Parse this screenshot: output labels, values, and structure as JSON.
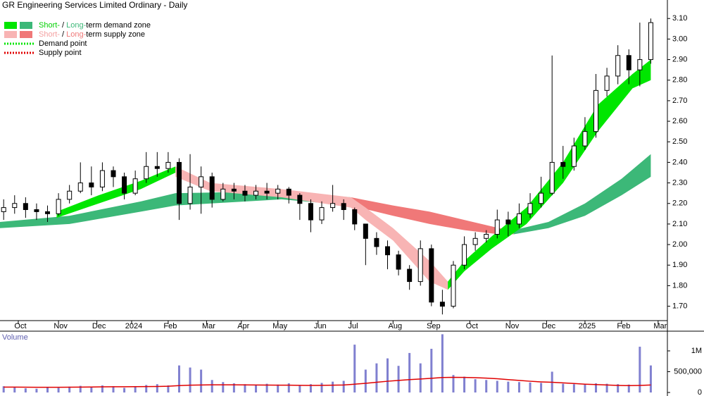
{
  "chart_data": {
    "type": "candlestick",
    "title": "GR Engineering Services Limited Ordinary - Daily",
    "xlim": [
      0,
      362
    ],
    "xticks": [
      {
        "value": 10,
        "label": "Oct"
      },
      {
        "value": 32,
        "label": "Nov"
      },
      {
        "value": 53,
        "label": "Dec"
      },
      {
        "value": 72,
        "label": "2024"
      },
      {
        "value": 92,
        "label": "Feb"
      },
      {
        "value": 113,
        "label": "Mar"
      },
      {
        "value": 132,
        "label": "Apr"
      },
      {
        "value": 152,
        "label": "May"
      },
      {
        "value": 174,
        "label": "Jun"
      },
      {
        "value": 192,
        "label": "Jul"
      },
      {
        "value": 215,
        "label": "Aug"
      },
      {
        "value": 236,
        "label": "Sep"
      },
      {
        "value": 257,
        "label": "Oct"
      },
      {
        "value": 279,
        "label": "Nov"
      },
      {
        "value": 299,
        "label": "Dec"
      },
      {
        "value": 320,
        "label": "2025"
      },
      {
        "value": 340,
        "label": "Feb"
      },
      {
        "value": 360,
        "label": "Mar"
      }
    ],
    "ylim": [
      1.63,
      3.19
    ],
    "yticks": [
      {
        "value": 1.7,
        "label": "1.70"
      },
      {
        "value": 1.8,
        "label": "1.80"
      },
      {
        "value": 1.9,
        "label": "1.90"
      },
      {
        "value": 2.0,
        "label": "2.00"
      },
      {
        "value": 2.1,
        "label": "2.10"
      },
      {
        "value": 2.2,
        "label": "2.20"
      },
      {
        "value": 2.3,
        "label": "2.30"
      },
      {
        "value": 2.4,
        "label": "2.40"
      },
      {
        "value": 2.5,
        "label": "2.50"
      },
      {
        "value": 2.6,
        "label": "2.60"
      },
      {
        "value": 2.7,
        "label": "2.70"
      },
      {
        "value": 2.8,
        "label": "2.80"
      },
      {
        "value": 2.9,
        "label": "2.90"
      },
      {
        "value": 3.0,
        "label": "3.00"
      },
      {
        "value": 3.1,
        "label": "3.10"
      }
    ],
    "x": [
      2,
      8,
      14,
      20,
      26,
      32,
      38,
      44,
      50,
      56,
      62,
      68,
      74,
      80,
      86,
      92,
      98,
      104,
      110,
      116,
      122,
      128,
      134,
      140,
      146,
      152,
      158,
      164,
      170,
      176,
      182,
      188,
      194,
      200,
      206,
      212,
      218,
      224,
      230,
      236,
      242,
      248,
      254,
      260,
      266,
      272,
      278,
      284,
      290,
      296,
      302,
      308,
      314,
      320,
      326,
      332,
      338,
      344,
      350,
      356
    ],
    "open": [
      2.16,
      2.18,
      2.2,
      2.17,
      2.16,
      2.15,
      2.22,
      2.26,
      2.3,
      2.28,
      2.36,
      2.33,
      2.25,
      2.32,
      2.38,
      2.37,
      2.4,
      2.2,
      2.28,
      2.33,
      2.22,
      2.27,
      2.26,
      2.24,
      2.26,
      2.25,
      2.27,
      2.24,
      2.2,
      2.12,
      2.18,
      2.2,
      2.17,
      2.1,
      2.03,
      1.99,
      1.95,
      1.88,
      1.82,
      1.98,
      1.72,
      1.7,
      1.9,
      2.0,
      2.03,
      2.05,
      2.12,
      2.1,
      2.15,
      2.2,
      2.25,
      2.4,
      2.38,
      2.48,
      2.55,
      2.75,
      2.82,
      2.92,
      2.85,
      2.9
    ],
    "high": [
      2.22,
      2.24,
      2.23,
      2.2,
      2.19,
      2.25,
      2.29,
      2.4,
      2.38,
      2.4,
      2.38,
      2.35,
      2.36,
      2.45,
      2.45,
      2.45,
      2.42,
      2.44,
      2.38,
      2.35,
      2.3,
      2.3,
      2.29,
      2.29,
      2.3,
      2.29,
      2.28,
      2.25,
      2.22,
      2.21,
      2.29,
      2.22,
      2.18,
      2.1,
      2.06,
      2.02,
      1.97,
      1.9,
      2.02,
      2.0,
      1.78,
      1.92,
      2.04,
      2.06,
      2.07,
      2.17,
      2.16,
      2.2,
      2.25,
      2.33,
      2.92,
      2.48,
      2.52,
      2.62,
      2.83,
      2.86,
      2.97,
      2.95,
      3.08,
      3.1
    ],
    "low": [
      2.12,
      2.15,
      2.13,
      2.12,
      2.11,
      2.14,
      2.2,
      2.25,
      2.24,
      2.26,
      2.28,
      2.22,
      2.24,
      2.3,
      2.33,
      2.35,
      2.12,
      2.17,
      2.15,
      2.18,
      2.21,
      2.22,
      2.21,
      2.22,
      2.22,
      2.22,
      2.2,
      2.12,
      2.06,
      2.1,
      2.16,
      2.12,
      2.07,
      1.9,
      1.95,
      1.88,
      1.85,
      1.78,
      1.8,
      1.7,
      1.66,
      1.69,
      1.88,
      1.97,
      2.01,
      2.03,
      2.04,
      2.08,
      2.13,
      2.18,
      2.24,
      2.32,
      2.36,
      2.46,
      2.52,
      2.72,
      2.78,
      2.78,
      2.77,
      2.88
    ],
    "close": [
      2.18,
      2.2,
      2.17,
      2.16,
      2.15,
      2.22,
      2.26,
      2.3,
      2.28,
      2.36,
      2.33,
      2.25,
      2.32,
      2.38,
      2.37,
      2.4,
      2.2,
      2.28,
      2.33,
      2.22,
      2.27,
      2.26,
      2.24,
      2.26,
      2.25,
      2.27,
      2.24,
      2.2,
      2.12,
      2.18,
      2.2,
      2.17,
      2.1,
      2.03,
      1.99,
      1.95,
      1.88,
      1.82,
      1.98,
      1.72,
      1.7,
      1.9,
      2.0,
      2.03,
      2.05,
      2.12,
      2.1,
      2.15,
      2.2,
      2.25,
      2.4,
      2.38,
      2.48,
      2.55,
      2.75,
      2.82,
      2.92,
      2.85,
      2.9,
      3.08
    ],
    "zones": [
      {
        "color": "#3cb878",
        "x": [
          0,
          38,
          77,
          96,
          154,
          192
        ],
        "lower": [
          2.08,
          2.1,
          2.16,
          2.19,
          2.22,
          2.19
        ],
        "upper": [
          2.11,
          2.14,
          2.21,
          2.25,
          2.26,
          2.23
        ]
      },
      {
        "color": "#f07878",
        "x": [
          192,
          215,
          235,
          254,
          273,
          281
        ],
        "lower": [
          2.19,
          2.14,
          2.1,
          2.07,
          2.05,
          2.05
        ],
        "upper": [
          2.23,
          2.19,
          2.16,
          2.12,
          2.08,
          2.07
        ]
      },
      {
        "color": "#3cb878",
        "x": [
          281,
          300,
          320,
          340,
          356
        ],
        "lower": [
          2.05,
          2.08,
          2.14,
          2.24,
          2.33
        ],
        "upper": [
          2.07,
          2.11,
          2.2,
          2.32,
          2.44
        ]
      },
      {
        "color": "#00e600",
        "x": [
          31,
          54,
          77,
          96
        ],
        "lower": [
          2.13,
          2.2,
          2.27,
          2.35
        ],
        "upper": [
          2.16,
          2.24,
          2.31,
          2.38
        ]
      },
      {
        "color": "#f8b4b4",
        "x": [
          96,
          115,
          154,
          192,
          200,
          215,
          235,
          245
        ],
        "lower": [
          2.33,
          2.26,
          2.23,
          2.18,
          2.12,
          2.02,
          1.82,
          1.78
        ],
        "upper": [
          2.38,
          2.3,
          2.27,
          2.23,
          2.18,
          2.08,
          1.92,
          1.82
        ]
      },
      {
        "color": "#00e600",
        "x": [
          245,
          254,
          269,
          288,
          308,
          327,
          346,
          356
        ],
        "lower": [
          1.78,
          1.87,
          1.98,
          2.1,
          2.3,
          2.55,
          2.76,
          2.8
        ],
        "upper": [
          1.82,
          1.92,
          2.04,
          2.18,
          2.4,
          2.68,
          2.83,
          2.9
        ]
      }
    ],
    "legend": [
      {
        "swatches": [
          "#00e600",
          "#3cb878"
        ],
        "parts": [
          "Short-",
          " / ",
          "Long-",
          "term demand zone"
        ],
        "part_colors": [
          "#00d000",
          "#000000",
          "#3cb878",
          "#000000"
        ]
      },
      {
        "swatches": [
          "#f8b4b4",
          "#f07878"
        ],
        "parts": [
          "Short-",
          " / ",
          "Long-",
          "term supply zone"
        ],
        "part_colors": [
          "#f4a0a0",
          "#000000",
          "#f07878",
          "#000000"
        ]
      },
      {
        "line_color": "#00e600",
        "text": "Demand point"
      },
      {
        "line_color": "#e00000",
        "text": "Supply point"
      }
    ],
    "volume": {
      "title": "Volume",
      "color": "#8080d0",
      "ma_color": "#e00000",
      "ylim": [
        0,
        1440000
      ],
      "yticks": [
        0,
        {
          "value": 500000,
          "label": "500,000"
        },
        {
          "value": 1000000,
          "label": "1M"
        }
      ],
      "values": [
        150000,
        120000,
        100000,
        90000,
        130000,
        110000,
        140000,
        160000,
        120000,
        170000,
        150000,
        110000,
        130000,
        180000,
        200000,
        170000,
        650000,
        600000,
        550000,
        300000,
        250000,
        220000,
        200000,
        180000,
        210000,
        190000,
        220000,
        170000,
        200000,
        230000,
        260000,
        280000,
        1150000,
        550000,
        700000,
        820000,
        640000,
        950000,
        700000,
        1050000,
        1400000,
        420000,
        380000,
        320000,
        300000,
        280000,
        260000,
        250000,
        240000,
        230000,
        500000,
        210000,
        200000,
        190000,
        220000,
        210000,
        200000,
        190000,
        1100000,
        650000
      ],
      "ma": [
        130000,
        130000,
        128000,
        125000,
        125000,
        125000,
        127000,
        130000,
        132000,
        135000,
        137000,
        138000,
        140000,
        142000,
        145000,
        150000,
        165000,
        175000,
        180000,
        185000,
        185000,
        185000,
        182000,
        180000,
        178000,
        175000,
        175000,
        172000,
        170000,
        172000,
        175000,
        180000,
        200000,
        220000,
        245000,
        270000,
        290000,
        310000,
        325000,
        340000,
        360000,
        365000,
        362000,
        355000,
        345000,
        330000,
        310000,
        290000,
        270000,
        255000,
        245000,
        230000,
        215000,
        200000,
        190000,
        180000,
        170000,
        165000,
        170000,
        180000
      ]
    }
  }
}
